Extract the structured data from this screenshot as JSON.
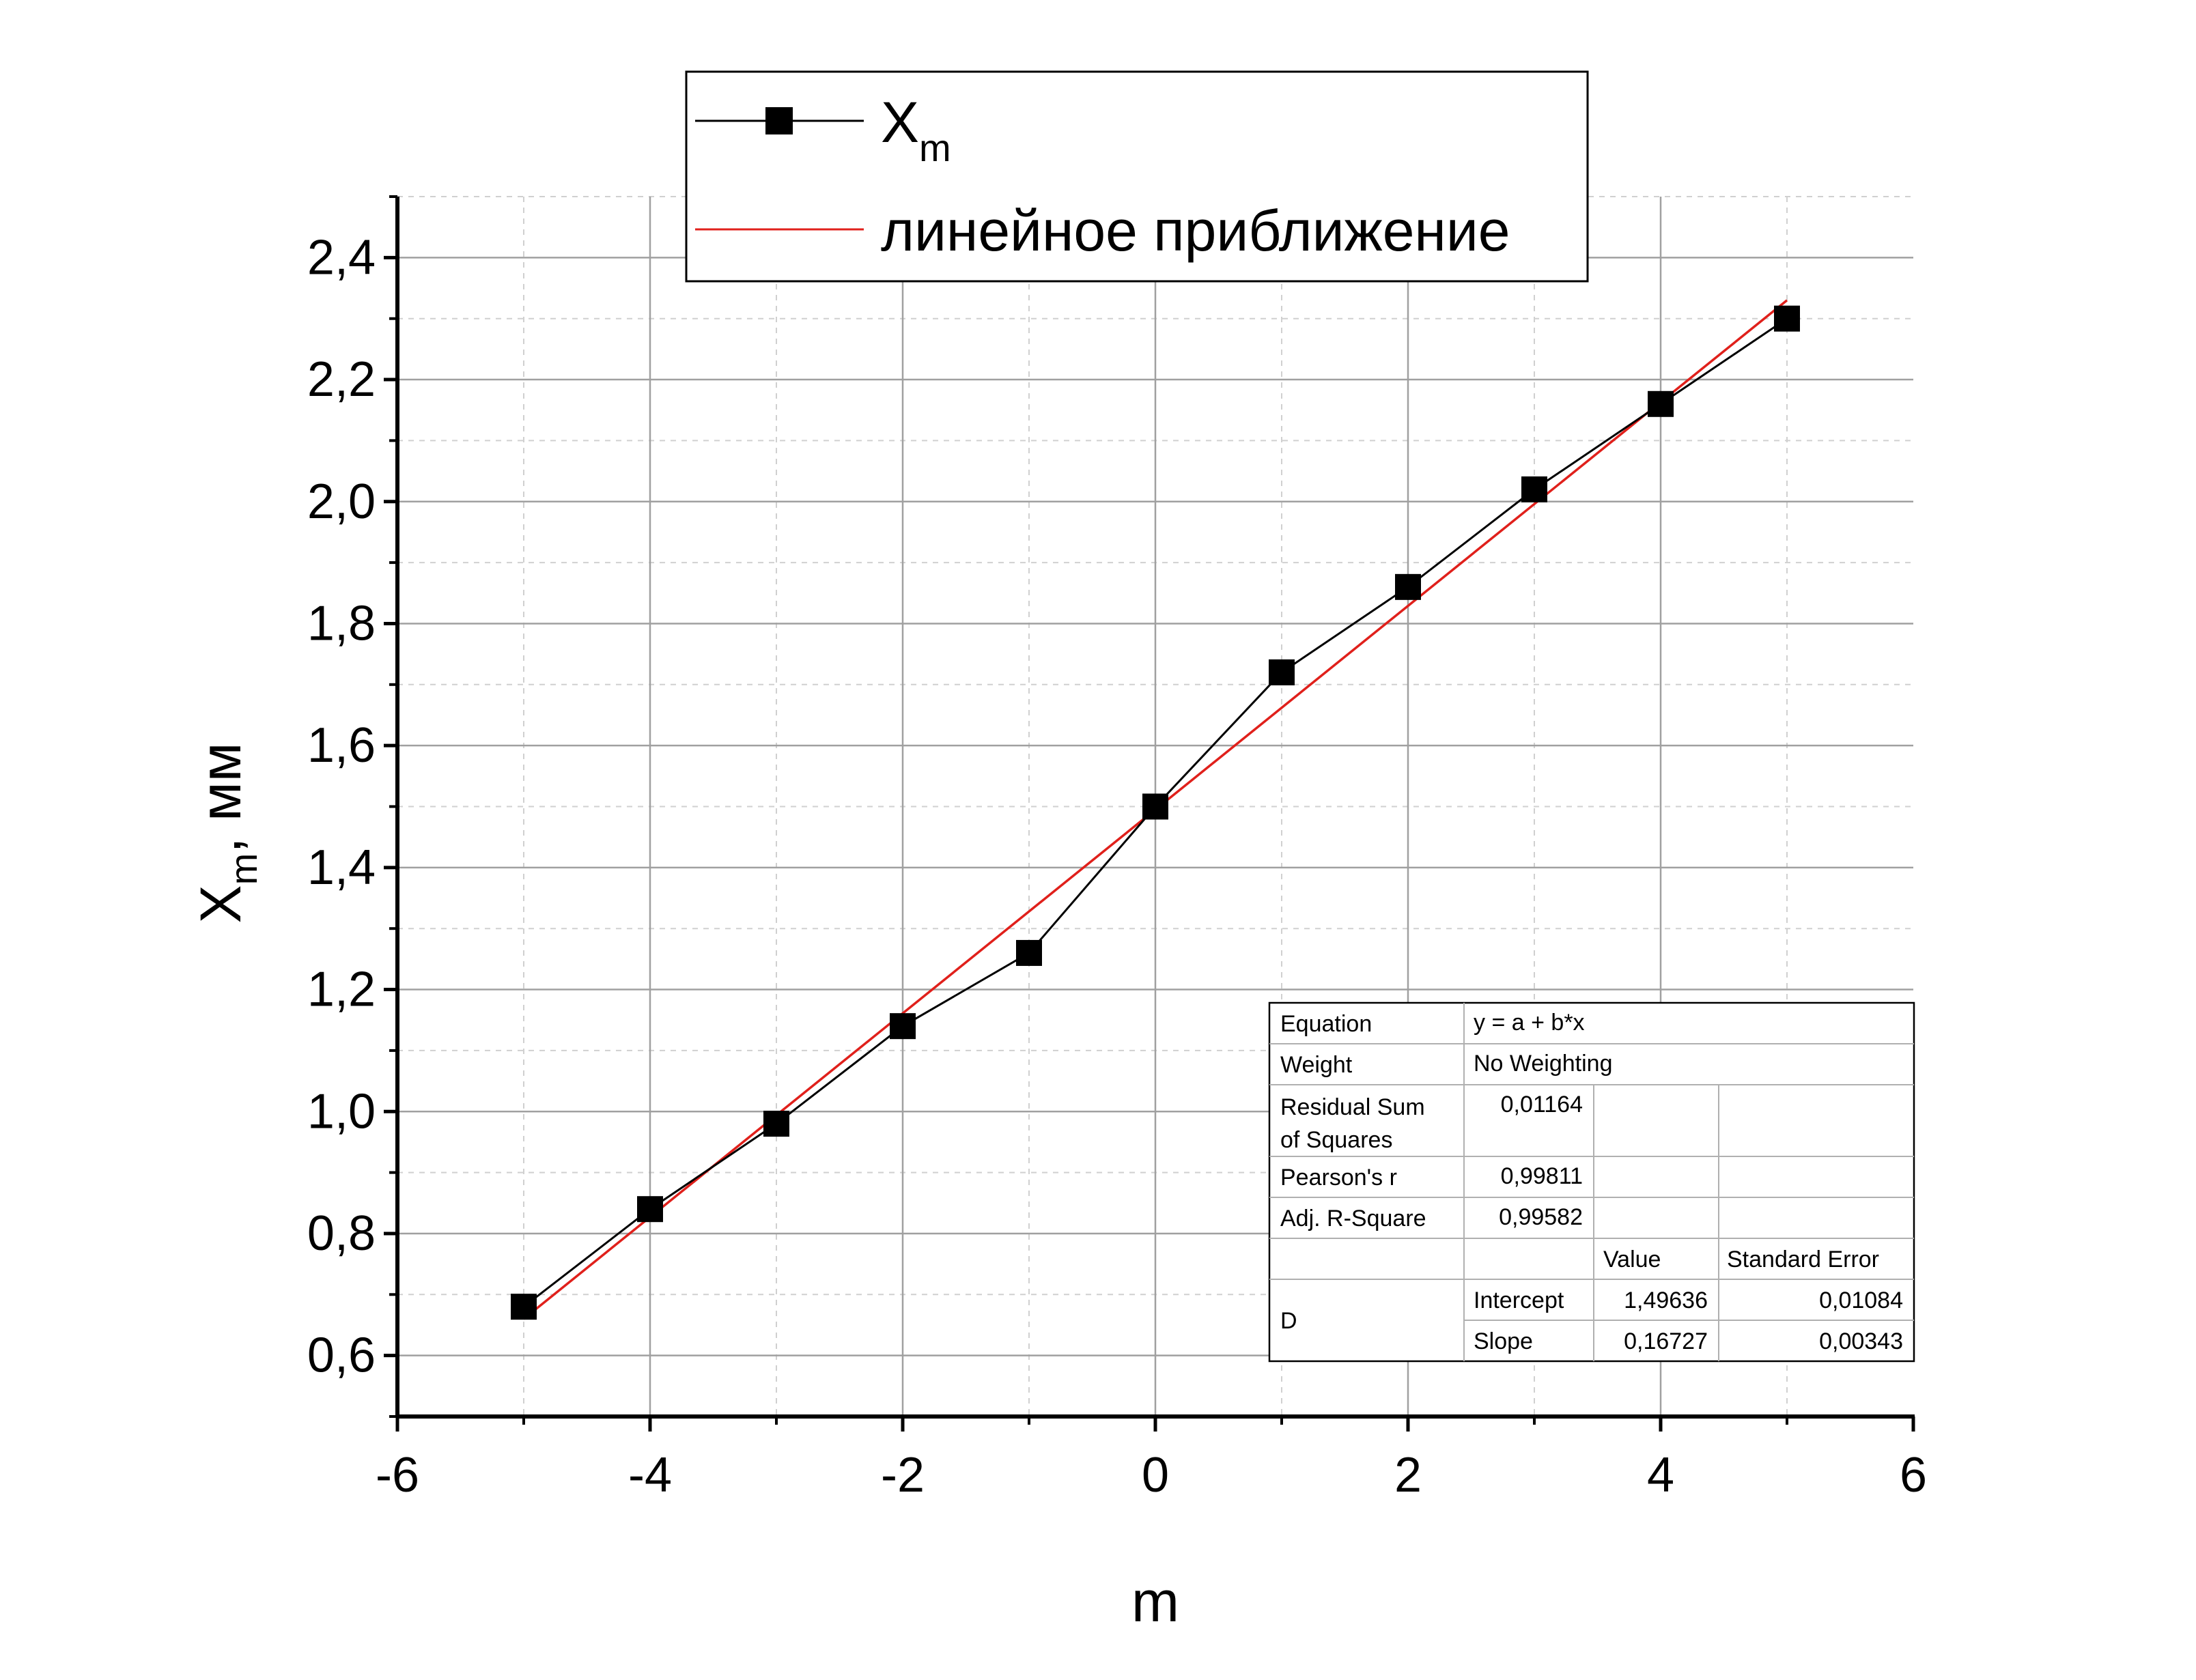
{
  "chart_data": {
    "type": "scatter",
    "xlabel": "m",
    "ylabel_main": "X",
    "ylabel_sub": "m",
    "ylabel_suffix": ", мм",
    "xlim": [
      -6,
      6
    ],
    "ylim": [
      0.5,
      2.5
    ],
    "x_ticks": [
      -6,
      -4,
      -2,
      0,
      2,
      4,
      6
    ],
    "x_tick_labels": [
      "-6",
      "-4",
      "-2",
      "0",
      "2",
      "4",
      "6"
    ],
    "y_ticks": [
      0.6,
      0.8,
      1.0,
      1.2,
      1.4,
      1.6,
      1.8,
      2.0,
      2.2,
      2.4
    ],
    "y_tick_labels": [
      "0,6",
      "0,8",
      "1,0",
      "1,2",
      "1,4",
      "1,6",
      "1,8",
      "2,0",
      "2,2",
      "2,4"
    ],
    "grid": true,
    "legend_position": "top",
    "series": [
      {
        "name_main": "X",
        "name_sub": "m",
        "style": "line+square-markers",
        "color": "#000000",
        "x": [
          -5,
          -4,
          -3,
          -2,
          -1,
          0,
          1,
          2,
          3,
          4,
          5
        ],
        "y": [
          0.68,
          0.84,
          0.98,
          1.14,
          1.26,
          1.5,
          1.72,
          1.86,
          2.02,
          2.16,
          2.3
        ]
      },
      {
        "name": "линейное приближение",
        "style": "line",
        "color": "#e0201b",
        "x": [
          -5,
          5
        ],
        "y": [
          0.66,
          2.33
        ]
      }
    ],
    "fit_table": {
      "rows": [
        [
          "Equation",
          "y = a + b*x",
          "",
          ""
        ],
        [
          "Weight",
          "No Weighting",
          "",
          ""
        ],
        [
          "Residual Sum of Squares",
          "0,01164",
          "",
          ""
        ],
        [
          "Pearson's r",
          "0,99811",
          "",
          ""
        ],
        [
          "Adj. R-Square",
          "0,99582",
          "",
          ""
        ]
      ],
      "param_header": [
        "",
        "",
        "Value",
        "Standard Error"
      ],
      "group_label": "D",
      "params": [
        [
          "Intercept",
          "1,49636",
          "0,01084"
        ],
        [
          "Slope",
          "0,16727",
          "0,00343"
        ]
      ]
    }
  }
}
